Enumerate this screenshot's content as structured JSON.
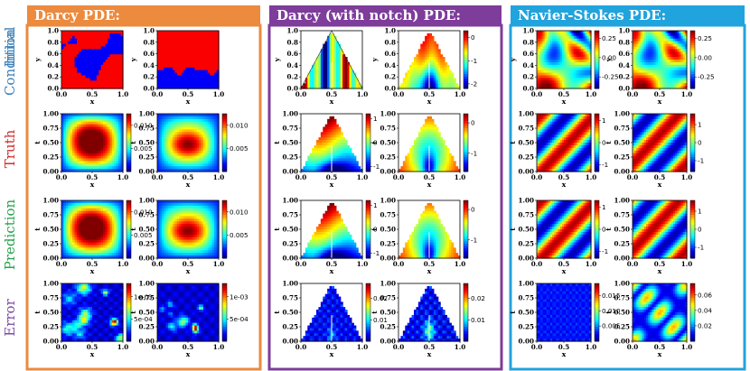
{
  "chart_data": {
    "type": "heatmap",
    "colormap": "jet",
    "panels": [
      {
        "title": "Darcy PDE:",
        "header_color": "#ec8a3e"
      },
      {
        "title": "Darcy (with notch) PDE:",
        "header_color": "#7e3c9b"
      },
      {
        "title": "Navier-Stokes PDE:",
        "header_color": "#21a3dd"
      }
    ],
    "rows": [
      {
        "label": "Initial\nCondition",
        "label_lines": [
          "Initial",
          "Condition"
        ],
        "color": "#3b7fb7"
      },
      {
        "label": "Truth",
        "label_lines": [
          "Truth"
        ],
        "color": "#cf2e2e"
      },
      {
        "label": "Prediction",
        "label_lines": [
          "Prediction"
        ],
        "color": "#27a24e"
      },
      {
        "label": "Error",
        "label_lines": [
          "Error"
        ],
        "color": "#7a4ba6"
      }
    ],
    "axes": {
      "x_ticks": [
        "0.0",
        "0.5",
        "1.0"
      ],
      "y_ticks_sparse": [
        "0.0",
        "0.2",
        "0.4",
        "0.6",
        "0.8",
        "1.0"
      ],
      "y_ticks_dense": [
        "0.00",
        "0.25",
        "0.50",
        "0.75",
        "1.00"
      ],
      "xlabel": "x",
      "ylabel_ic": "y",
      "ylabel_field": "t",
      "xlim": [
        0,
        1
      ],
      "ylim": [
        0,
        1
      ]
    },
    "colorbars": {
      "darcy_truth": {
        "ticks": [
          "0.010",
          "0.005"
        ],
        "range": [
          0.0,
          0.0125
        ]
      },
      "darcy_error": {
        "ticks": [
          "1e-03",
          "5e-04"
        ],
        "range": [
          0.0,
          0.0013
        ]
      },
      "notch_ic": {
        "ticks": [
          "0",
          "-1",
          "-2"
        ],
        "range": [
          -2.2,
          0.3
        ]
      },
      "notch_truth_a": {
        "ticks": [
          "1",
          "0",
          "-1"
        ],
        "range": [
          -1.2,
          1.2
        ]
      },
      "notch_truth_b": {
        "ticks": [
          "0",
          "-1"
        ],
        "range": [
          -1.6,
          0.3
        ]
      },
      "notch_error_a": {
        "ticks": [
          "0.02",
          "0.01"
        ],
        "range": [
          0.0,
          0.027
        ]
      },
      "notch_error_b": {
        "ticks": [
          "0.02",
          "0.01"
        ],
        "range": [
          0.0,
          0.027
        ]
      },
      "ns_ic": {
        "ticks": [
          "0.25",
          "0.00",
          "-0.25"
        ],
        "range": [
          -0.4,
          0.35
        ]
      },
      "ns_truth_a": {
        "ticks": [
          "1",
          "0",
          "-1"
        ],
        "range": [
          -1.3,
          1.3
        ]
      },
      "ns_truth_b": {
        "ticks": [
          "1",
          "0",
          "-1"
        ],
        "range": [
          -1.6,
          1.6
        ]
      },
      "ns_error_a": {
        "ticks": [
          "0.015",
          "0.010",
          "0.005"
        ],
        "range": [
          0.0,
          0.019
        ]
      },
      "ns_error_b": {
        "ticks": [
          "0.06",
          "0.04",
          "0.02"
        ],
        "range": [
          0.0,
          0.075
        ]
      }
    }
  }
}
